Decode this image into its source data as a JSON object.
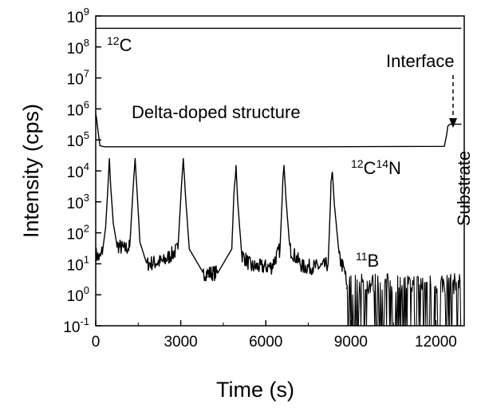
{
  "chart_data": {
    "type": "line",
    "title": "",
    "xlabel": "Time (s)",
    "ylabel": "Intensity (cps)",
    "xlim": [
      0,
      13000
    ],
    "ylim": [
      0.1,
      1000000000
    ],
    "yscale": "log",
    "grid": false,
    "legend": "none",
    "x_ticks": [
      {
        "value": 0,
        "label": "0"
      },
      {
        "value": 3000,
        "label": "3000"
      },
      {
        "value": 6000,
        "label": "6000"
      },
      {
        "value": 9000,
        "label": "9000"
      },
      {
        "value": 12000,
        "label": "12000"
      }
    ],
    "y_ticks": [
      {
        "value": 1000000000,
        "base": "10",
        "exp": "9"
      },
      {
        "value": 100000000,
        "base": "10",
        "exp": "8"
      },
      {
        "value": 10000000,
        "base": "10",
        "exp": "7"
      },
      {
        "value": 1000000,
        "base": "10",
        "exp": "6"
      },
      {
        "value": 100000,
        "base": "10",
        "exp": "5"
      },
      {
        "value": 10000,
        "base": "10",
        "exp": "4"
      },
      {
        "value": 1000,
        "base": "10",
        "exp": "3"
      },
      {
        "value": 100,
        "base": "10",
        "exp": "2"
      },
      {
        "value": 10,
        "base": "10",
        "exp": "1"
      },
      {
        "value": 1,
        "base": "10",
        "exp": "0"
      },
      {
        "value": 0.1,
        "base": "10",
        "exp": "-1"
      }
    ],
    "series": [
      {
        "values_note": "",
        "x": [
          0,
          12900
        ],
        "y": [
          400000000,
          400000000
        ]
      },
      {
        "x": [
          0,
          30,
          80,
          150,
          300,
          1000,
          4000,
          8000,
          12300,
          12380,
          12420,
          12500,
          12900
        ],
        "y": [
          700000,
          500000,
          200000,
          65000,
          60000,
          60000,
          60000,
          60000,
          62000,
          150000,
          280000,
          320000,
          320000
        ]
      },
      {
        "x": [
          0,
          150,
          250,
          350,
          430,
          480,
          530,
          620,
          750,
          1000,
          1200,
          1330,
          1390,
          1460,
          1560,
          1800,
          2400,
          2900,
          3030,
          3090,
          3160,
          3300,
          3800,
          4300,
          4800,
          4890,
          4950,
          5010,
          5150,
          5500,
          6200,
          6500,
          6600,
          6640,
          6720,
          6850,
          7300,
          8000,
          8200,
          8300,
          8350,
          8420,
          8600,
          8800,
          8850
        ],
        "y": [
          20,
          15,
          30,
          150,
          3000,
          25000,
          3000,
          200,
          40,
          30,
          35,
          4000,
          25000,
          2000,
          50,
          10,
          12,
          30,
          4000,
          25000,
          2000,
          30,
          5,
          5,
          30,
          4000,
          15000,
          1000,
          20,
          8,
          8,
          30,
          4000,
          15000,
          1000,
          30,
          8,
          8,
          10,
          3000,
          9000,
          800,
          15,
          5,
          2
        ]
      },
      {
        "x": [
          8850,
          12900
        ],
        "y": [
          1,
          1
        ]
      }
    ],
    "annotations": {
      "c12": {
        "sup": "12",
        "text": "C"
      },
      "delta": {
        "text": "Delta-doped structure"
      },
      "interface": {
        "text": "Interface"
      },
      "cn": {
        "sup1": "12",
        "t1": "C",
        "sup2": "14",
        "t2": "N"
      },
      "substrate": {
        "text": "Substrate"
      },
      "b11": {
        "sup": "11",
        "text": "B"
      }
    }
  }
}
